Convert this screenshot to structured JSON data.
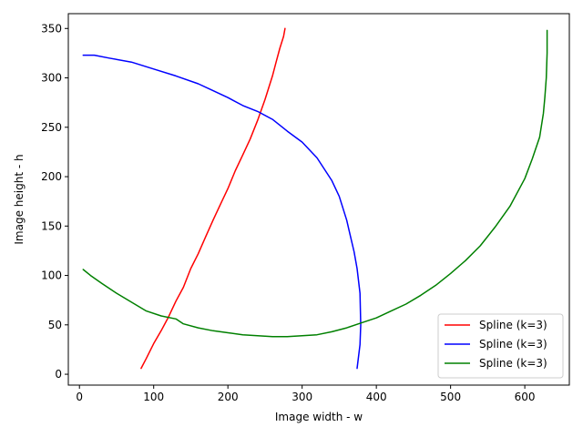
{
  "chart_data": {
    "type": "line",
    "title": "",
    "xlabel": "Image width  - w",
    "ylabel": "Image height - h",
    "xlim": [
      -15,
      660
    ],
    "ylim": [
      -11,
      365
    ],
    "xticks": [
      0,
      100,
      200,
      300,
      400,
      500,
      600
    ],
    "yticks": [
      0,
      50,
      100,
      150,
      200,
      250,
      300,
      350
    ],
    "grid": false,
    "legend_position": "lower right",
    "series": [
      {
        "name": "Spline (k=3)",
        "color": "#ff0000",
        "x": [
          83,
          90,
          100,
          110,
          120,
          130,
          140,
          150,
          160,
          170,
          180,
          190,
          200,
          210,
          220,
          230,
          240,
          250,
          260,
          265,
          270,
          275,
          277
        ],
        "y": [
          6,
          16,
          31,
          44,
          58,
          74,
          88,
          107,
          122,
          139,
          156,
          172,
          188,
          206,
          222,
          238,
          257,
          278,
          302,
          316,
          330,
          342,
          350
        ]
      },
      {
        "name": "Spline (k=3)",
        "color": "#0000ff",
        "x": [
          5,
          20,
          40,
          70,
          100,
          130,
          160,
          180,
          200,
          220,
          240,
          260,
          280,
          300,
          320,
          340,
          350,
          360,
          365,
          370,
          374,
          378,
          379,
          378,
          374
        ],
        "y": [
          323,
          323,
          320,
          316,
          309,
          302,
          294,
          287,
          280,
          272,
          266,
          258,
          246,
          235,
          219,
          196,
          180,
          156,
          140,
          124,
          107,
          82,
          50,
          30,
          6
        ]
      },
      {
        "name": "Spline (k=3)",
        "color": "#008000",
        "x": [
          5,
          15,
          30,
          50,
          70,
          90,
          110,
          130,
          140,
          160,
          180,
          200,
          220,
          240,
          260,
          280,
          300,
          320,
          340,
          360,
          380,
          400,
          420,
          440,
          460,
          480,
          500,
          520,
          540,
          560,
          580,
          600,
          610,
          620,
          625,
          627,
          629,
          630,
          630
        ],
        "y": [
          106,
          100,
          92,
          82,
          73,
          64,
          59,
          56,
          51,
          47,
          44,
          42,
          40,
          39,
          38,
          38,
          39,
          40,
          43,
          47,
          52,
          57,
          64,
          71,
          80,
          90,
          102,
          115,
          130,
          149,
          170,
          198,
          218,
          240,
          264,
          280,
          300,
          325,
          348
        ]
      }
    ]
  }
}
